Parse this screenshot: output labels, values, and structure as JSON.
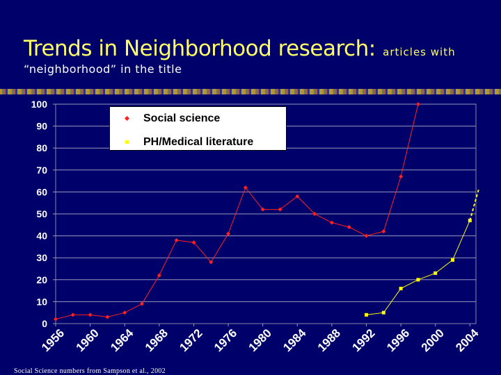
{
  "title": {
    "main": "Trends in Neighborhood research:",
    "sub": "articles with",
    "line2": "“neighborhood” in the title"
  },
  "footnote": "Social Science numbers from Sampson et al., 2002",
  "colors": {
    "background": "#00006a",
    "title": "#ffff66",
    "social_science": "#ff2020",
    "ph_medical": "#ffff00",
    "axis_text": "#ffffff"
  },
  "chart_data": {
    "type": "line",
    "title": "",
    "xlabel": "",
    "ylabel": "",
    "ylim": [
      0,
      100
    ],
    "yticks": [
      0,
      10,
      20,
      30,
      40,
      50,
      60,
      70,
      80,
      90,
      100
    ],
    "xlim": [
      1956,
      2004
    ],
    "xticks": [
      1956,
      1960,
      1964,
      1968,
      1972,
      1976,
      1980,
      1984,
      1988,
      1992,
      1996,
      2000,
      2004
    ],
    "grid": "horizontal",
    "legend": {
      "placement": "top-left",
      "entries": [
        "Social science",
        "PH/Medical literature"
      ]
    },
    "series": [
      {
        "name": "Social science",
        "marker": "diamond",
        "x": [
          1956,
          1958,
          1960,
          1962,
          1964,
          1966,
          1968,
          1970,
          1972,
          1974,
          1976,
          1978,
          1980,
          1982,
          1984,
          1986,
          1988,
          1990,
          1992,
          1994,
          1996,
          1998
        ],
        "values": [
          2,
          4,
          4,
          3,
          5,
          9,
          22,
          38,
          37,
          28,
          41,
          62,
          52,
          52,
          58,
          50,
          46,
          44,
          40,
          42,
          67,
          100
        ]
      },
      {
        "name": "PH/Medical literature",
        "marker": "square",
        "x": [
          1992,
          1994,
          1996,
          1998,
          2000,
          2002,
          2004
        ],
        "values": [
          4,
          5,
          16,
          20,
          23,
          29,
          47
        ],
        "projection": {
          "x": [
            2004,
            2005
          ],
          "values": [
            47,
            61
          ]
        }
      }
    ]
  }
}
